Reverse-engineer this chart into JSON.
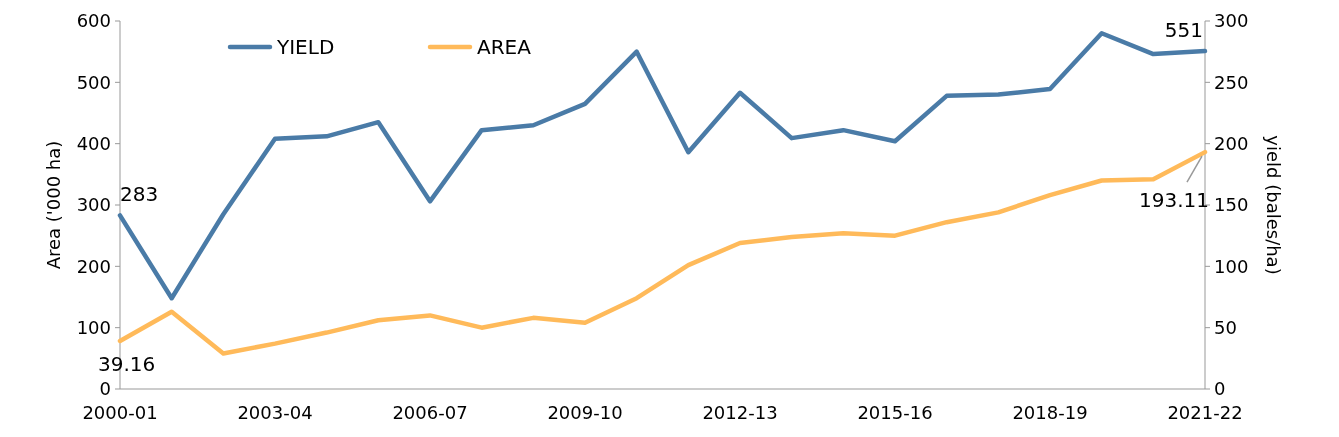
{
  "chart_data": {
    "type": "line",
    "categories": [
      "2000-01",
      null,
      null,
      "2003-04",
      null,
      null,
      "2006-07",
      null,
      null,
      "2009-10",
      null,
      null,
      "2012-13",
      null,
      null,
      "2015-16",
      null,
      null,
      "2018-19",
      null,
      null,
      "2021-22"
    ],
    "ylabel": "Area ('000 ha)",
    "y2label": "yield (bales/ha)",
    "ylim": [
      0,
      600
    ],
    "yticks": [
      0,
      100,
      200,
      300,
      400,
      500,
      600
    ],
    "y2lim": [
      0,
      300
    ],
    "y2ticks": [
      0,
      50,
      100,
      150,
      200,
      250,
      300
    ],
    "series": [
      {
        "name": "YIELD",
        "color": "#4a7ba7",
        "values": [
          283,
          148,
          285,
          408,
          412,
          435,
          306,
          422,
          430,
          465,
          550,
          386,
          483,
          409,
          422,
          404,
          478,
          480,
          489,
          580,
          546,
          551
        ],
        "value_labels": [
          "283",
          null,
          null,
          null,
          null,
          null,
          null,
          null,
          null,
          null,
          null,
          null,
          null,
          null,
          null,
          null,
          null,
          null,
          null,
          null,
          null,
          "551"
        ]
      },
      {
        "name": "AREA",
        "color": "#ffba5a",
        "axis": "y2",
        "values": [
          39.16,
          63,
          29,
          37,
          46,
          56,
          60,
          50,
          58,
          54,
          74,
          101,
          119,
          124,
          127,
          125,
          136,
          144,
          158,
          170,
          171,
          193.11
        ],
        "value_labels": [
          "39.16",
          null,
          null,
          null,
          null,
          null,
          null,
          null,
          null,
          null,
          null,
          null,
          null,
          null,
          null,
          null,
          null,
          null,
          null,
          null,
          null,
          "193.11"
        ]
      }
    ],
    "legend": "top left",
    "grid": false,
    "marker": "none",
    "line_style": "solid"
  }
}
